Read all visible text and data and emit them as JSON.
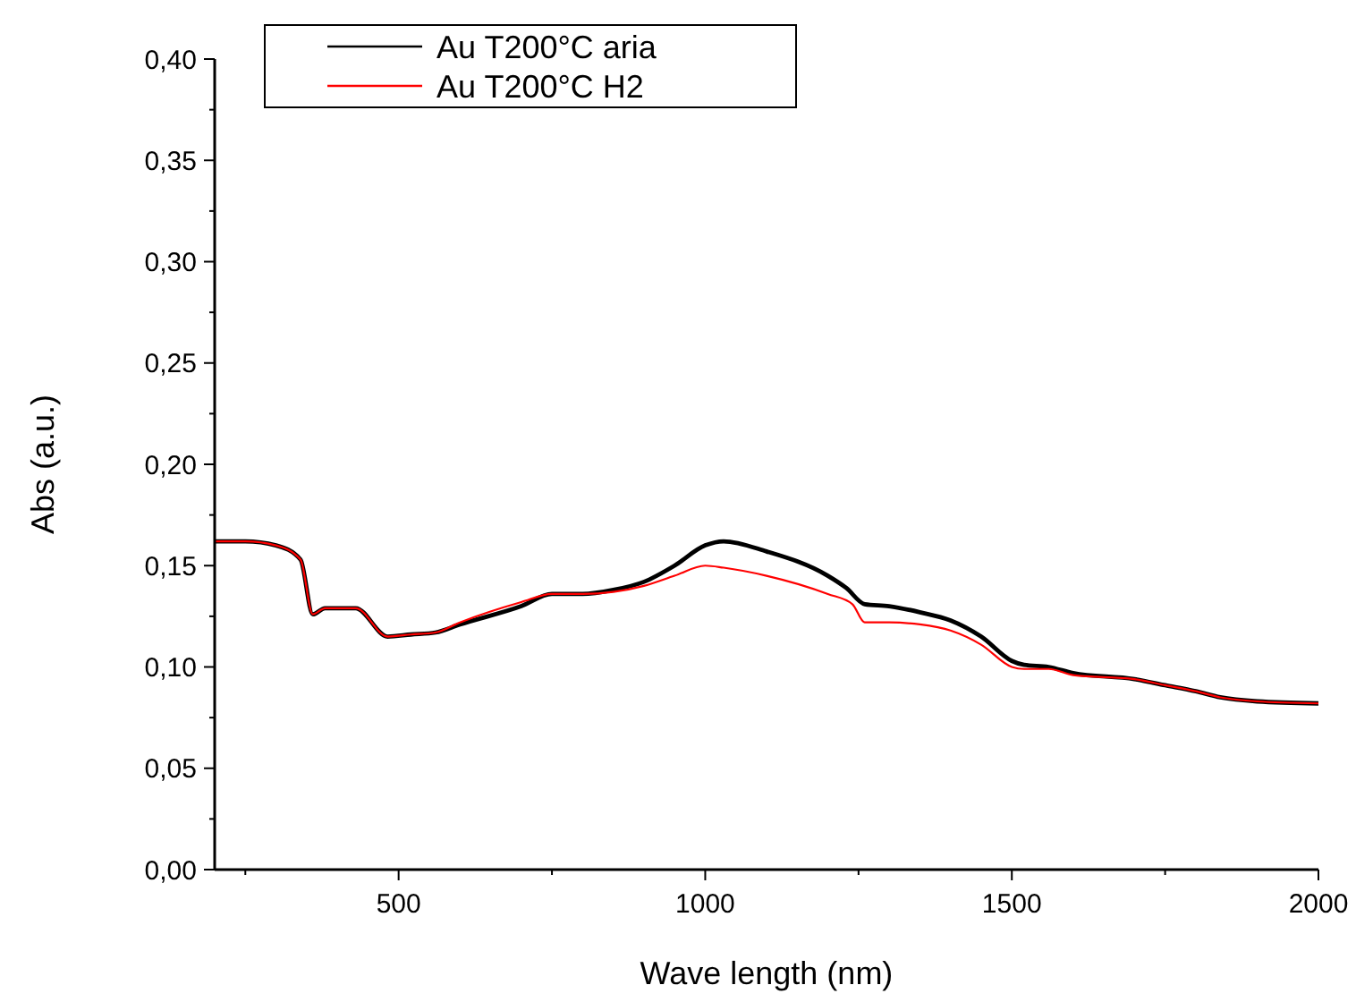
{
  "chart_data": {
    "type": "line",
    "xlabel": "Wave length (nm)",
    "ylabel": "Abs (a.u.)",
    "xlim": [
      200,
      2000
    ],
    "xticks": [
      500,
      1000,
      1500,
      2000
    ],
    "ylim": [
      0,
      0.4
    ],
    "yticks": [
      {
        "value": 0,
        "label": "0,00"
      },
      {
        "value": 0.05,
        "label": "0,05"
      },
      {
        "value": 0.1,
        "label": "0,10"
      },
      {
        "value": 0.15,
        "label": "0,15"
      },
      {
        "value": 0.2,
        "label": "0,20"
      },
      {
        "value": 0.25,
        "label": "0,25"
      },
      {
        "value": 0.3,
        "label": "0,30"
      },
      {
        "value": 0.35,
        "label": "0,35"
      },
      {
        "value": 0.4,
        "label": "0,40"
      }
    ],
    "grid": false,
    "legend": "top left",
    "marker": "none",
    "line_style": "solid",
    "series": [
      {
        "name": "Au T200°C aria",
        "color": "#000000",
        "x": [
          200,
          250,
          300,
          340,
          360,
          380,
          430,
          482,
          520,
          560,
          600,
          700,
          750,
          800,
          850,
          900,
          950,
          1000,
          1030,
          1100,
          1200,
          1230,
          1260,
          1300,
          1350,
          1400,
          1450,
          1500,
          1520,
          1560,
          1600,
          1700,
          1750,
          1800,
          1840,
          1900,
          2000
        ],
        "values": [
          0.162,
          0.162,
          0.16,
          0.153,
          0.126,
          0.129,
          0.129,
          0.115,
          0.116,
          0.117,
          0.121,
          0.13,
          0.136,
          0.136,
          0.138,
          0.142,
          0.15,
          0.16,
          0.162,
          0.157,
          0.145,
          0.139,
          0.131,
          0.13,
          0.127,
          0.123,
          0.115,
          0.103,
          0.101,
          0.1,
          0.097,
          0.094,
          0.091,
          0.088,
          0.085,
          0.083,
          0.082
        ]
      },
      {
        "name": "Au T200°C H2",
        "color": "#ff0000",
        "x": [
          200,
          250,
          300,
          340,
          360,
          380,
          430,
          482,
          520,
          560,
          600,
          700,
          750,
          800,
          850,
          900,
          950,
          1000,
          1030,
          1100,
          1200,
          1240,
          1260,
          1300,
          1350,
          1400,
          1450,
          1500,
          1520,
          1560,
          1600,
          1700,
          1750,
          1800,
          1840,
          1900,
          2000
        ],
        "values": [
          0.162,
          0.162,
          0.16,
          0.153,
          0.126,
          0.129,
          0.129,
          0.115,
          0.116,
          0.117,
          0.122,
          0.132,
          0.136,
          0.136,
          0.137,
          0.14,
          0.145,
          0.15,
          0.149,
          0.145,
          0.136,
          0.131,
          0.122,
          0.122,
          0.121,
          0.118,
          0.111,
          0.1,
          0.099,
          0.099,
          0.096,
          0.094,
          0.091,
          0.088,
          0.085,
          0.083,
          0.082
        ]
      }
    ]
  }
}
